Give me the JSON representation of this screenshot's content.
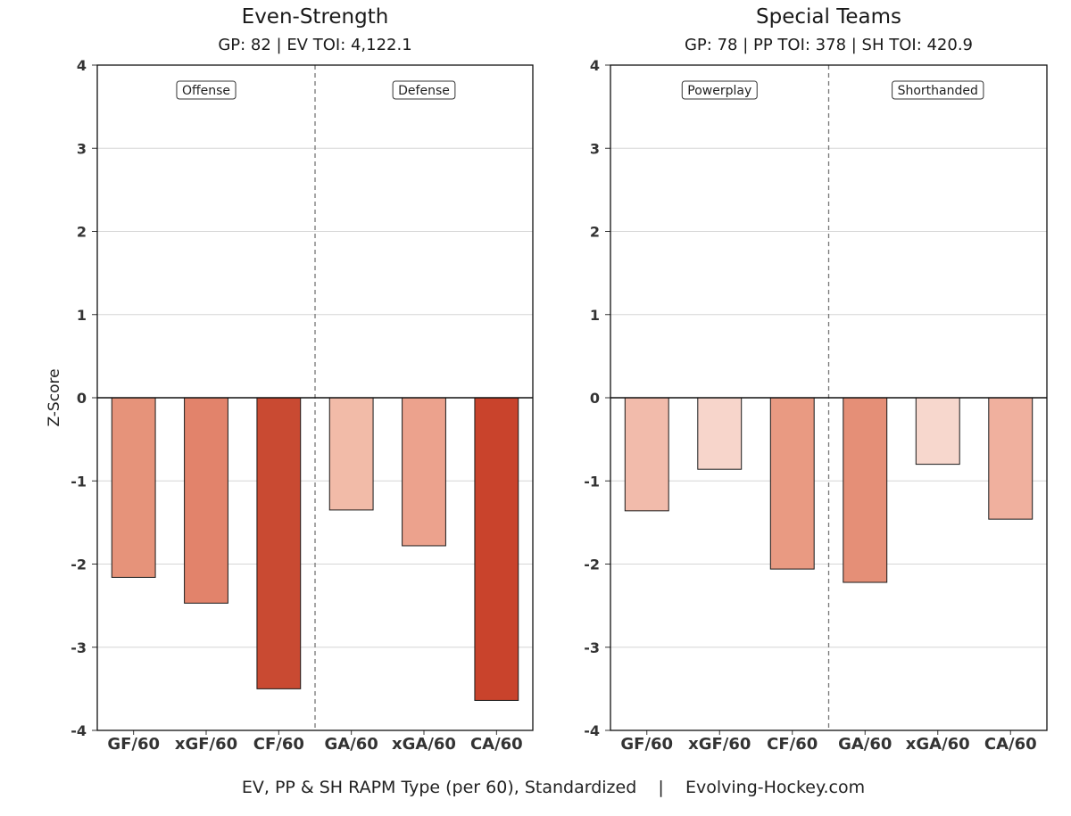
{
  "caption": "EV, PP & SH RAPM Type (per 60), Standardized    |    Evolving-Hockey.com",
  "chart_data": [
    {
      "type": "bar",
      "title": "Even-Strength",
      "subtitle": "GP: 82 | EV TOI: 4,122.1",
      "ylabel": "Z-Score",
      "xlabel": "",
      "ylim": [
        -4,
        4
      ],
      "yticks": [
        4,
        3,
        2,
        1,
        0,
        -1,
        -2,
        -3,
        -4
      ],
      "grid": true,
      "categories": [
        "GF/60",
        "xGF/60",
        "CF/60",
        "GA/60",
        "xGA/60",
        "CA/60"
      ],
      "values": [
        -2.16,
        -2.47,
        -3.5,
        -1.35,
        -1.78,
        -3.64
      ],
      "colors": [
        "#e6937a",
        "#e2836b",
        "#c94a32",
        "#f2bba8",
        "#eca28d",
        "#c9432c"
      ],
      "sections": [
        "Offense",
        "Defense"
      ]
    },
    {
      "type": "bar",
      "title": "Special Teams",
      "subtitle": "GP: 78 | PP TOI: 378 | SH TOI: 420.9",
      "ylabel": "",
      "xlabel": "",
      "ylim": [
        -4,
        4
      ],
      "yticks": [
        4,
        3,
        2,
        1,
        0,
        -1,
        -2,
        -3,
        -4
      ],
      "grid": true,
      "categories": [
        "GF/60",
        "xGF/60",
        "CF/60",
        "GA/60",
        "xGA/60",
        "CA/60"
      ],
      "values": [
        -1.36,
        -0.86,
        -2.06,
        -2.22,
        -0.8,
        -1.46
      ],
      "colors": [
        "#f2bbab",
        "#f7d5cb",
        "#e99a82",
        "#e58f77",
        "#f7d7cd",
        "#f0b09e"
      ],
      "sections": [
        "Powerplay",
        "Shorthanded"
      ]
    }
  ]
}
